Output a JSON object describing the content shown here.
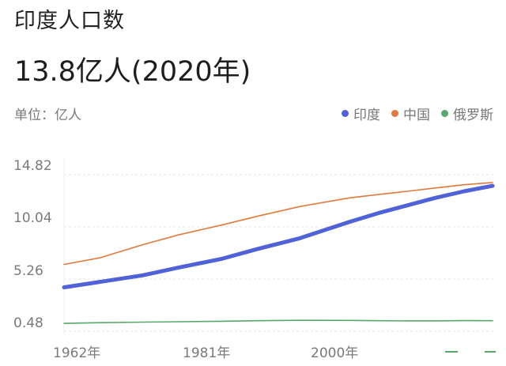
{
  "header": {
    "title": "印度人口数",
    "headline": "13.8亿人(2020年)"
  },
  "unit_label": "单位：亿人",
  "legend": [
    {
      "label": "印度",
      "color": "#4f62d8"
    },
    {
      "label": "中国",
      "color": "#e07a3c"
    },
    {
      "label": "俄罗斯",
      "color": "#57a86a"
    }
  ],
  "y_ticks": [
    "14.82",
    "10.04",
    "5.26",
    "0.48"
  ],
  "x_ticks": [
    "1962年",
    "1981年",
    "2000年"
  ],
  "pager": {
    "indicators": 2
  },
  "chart_data": {
    "type": "line",
    "title": "印度人口数",
    "subtitle": "13.8亿人(2020年)",
    "xlabel": "",
    "ylabel": "单位：亿人",
    "ylim": [
      0.48,
      14.82
    ],
    "yticks": [
      0.48,
      5.26,
      10.04,
      14.82
    ],
    "xticks": [
      "1962年",
      "1981年",
      "2000年"
    ],
    "grid": true,
    "legend_position": "top-right",
    "x": [
      1960,
      1965,
      1971,
      1976,
      1982,
      1987,
      1993,
      2000,
      2004,
      2008,
      2012,
      2016,
      2020
    ],
    "series": [
      {
        "name": "印度",
        "color": "#4f62d8",
        "values": [
          4.5,
          5.0,
          5.6,
          6.3,
          7.1,
          8.0,
          9.0,
          10.5,
          11.3,
          12.0,
          12.7,
          13.3,
          13.8
        ]
      },
      {
        "name": "中国",
        "color": "#e07a3c",
        "values": [
          6.6,
          7.2,
          8.4,
          9.3,
          10.2,
          11.0,
          11.9,
          12.7,
          13.0,
          13.3,
          13.6,
          13.9,
          14.1
        ]
      },
      {
        "name": "俄罗斯",
        "color": "#57a86a",
        "values": [
          1.2,
          1.26,
          1.31,
          1.35,
          1.39,
          1.44,
          1.48,
          1.47,
          1.44,
          1.43,
          1.43,
          1.45,
          1.44
        ]
      }
    ]
  }
}
